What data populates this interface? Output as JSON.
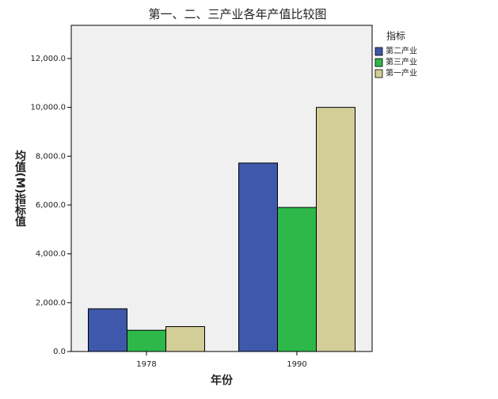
{
  "chart_data": {
    "type": "bar",
    "title": "第一、二、三产业各年产值比较图",
    "x_label": "年份",
    "y_label": "均值(M)指标值",
    "categories": [
      "1978",
      "1990"
    ],
    "legend_title": "指标",
    "series": [
      {
        "name": "第二产业",
        "color": "#3e58ac",
        "values": [
          1750,
          7720
        ]
      },
      {
        "name": "第三产业",
        "color": "#2eb84a",
        "values": [
          870,
          5900
        ]
      },
      {
        "name": "第一产业",
        "color": "#d3ce97",
        "values": [
          1020,
          10000
        ]
      }
    ],
    "ylim": [
      0,
      13360
    ],
    "yticks": [
      {
        "value": 0,
        "label": "0.0"
      },
      {
        "value": 2000,
        "label": "2,000.0"
      },
      {
        "value": 4000,
        "label": "4,000.0"
      },
      {
        "value": 6000,
        "label": "6,000.0"
      },
      {
        "value": 8000,
        "label": "8,000.0"
      },
      {
        "value": 10000,
        "label": "10,000.0"
      },
      {
        "value": 12000,
        "label": "12,000.0"
      }
    ],
    "grid": false
  }
}
